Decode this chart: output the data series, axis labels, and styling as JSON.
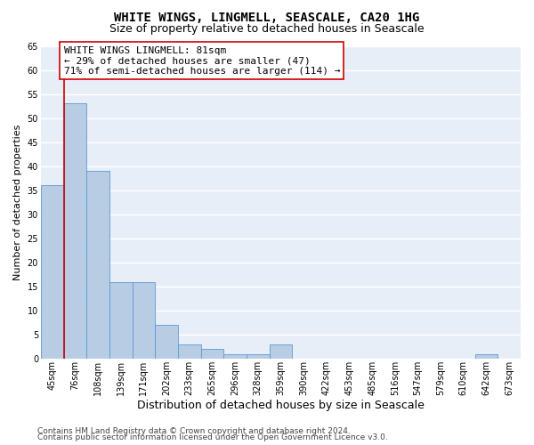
{
  "title": "WHITE WINGS, LINGMELL, SEASCALE, CA20 1HG",
  "subtitle": "Size of property relative to detached houses in Seascale",
  "xlabel": "Distribution of detached houses by size in Seascale",
  "ylabel": "Number of detached properties",
  "categories": [
    "45sqm",
    "76sqm",
    "108sqm",
    "139sqm",
    "171sqm",
    "202sqm",
    "233sqm",
    "265sqm",
    "296sqm",
    "328sqm",
    "359sqm",
    "390sqm",
    "422sqm",
    "453sqm",
    "485sqm",
    "516sqm",
    "547sqm",
    "579sqm",
    "610sqm",
    "642sqm",
    "673sqm"
  ],
  "values": [
    36,
    53,
    39,
    16,
    16,
    7,
    3,
    2,
    1,
    1,
    3,
    0,
    0,
    0,
    0,
    0,
    0,
    0,
    0,
    1,
    0
  ],
  "bar_color": "#b8cce4",
  "bar_edge_color": "#5b9bd5",
  "vline_x": 0.5,
  "vline_color": "#cc0000",
  "annotation_text": "WHITE WINGS LINGMELL: 81sqm\n← 29% of detached houses are smaller (47)\n71% of semi-detached houses are larger (114) →",
  "annotation_box_color": "#ffffff",
  "annotation_box_edge": "#cc0000",
  "ylim": [
    0,
    65
  ],
  "yticks": [
    0,
    5,
    10,
    15,
    20,
    25,
    30,
    35,
    40,
    45,
    50,
    55,
    60,
    65
  ],
  "background_color": "#e8eef8",
  "grid_color": "#ffffff",
  "footer_line1": "Contains HM Land Registry data © Crown copyright and database right 2024.",
  "footer_line2": "Contains public sector information licensed under the Open Government Licence v3.0.",
  "title_fontsize": 10,
  "subtitle_fontsize": 9,
  "ylabel_fontsize": 8,
  "xlabel_fontsize": 9,
  "tick_fontsize": 7,
  "annotation_fontsize": 8,
  "footer_fontsize": 6.5
}
